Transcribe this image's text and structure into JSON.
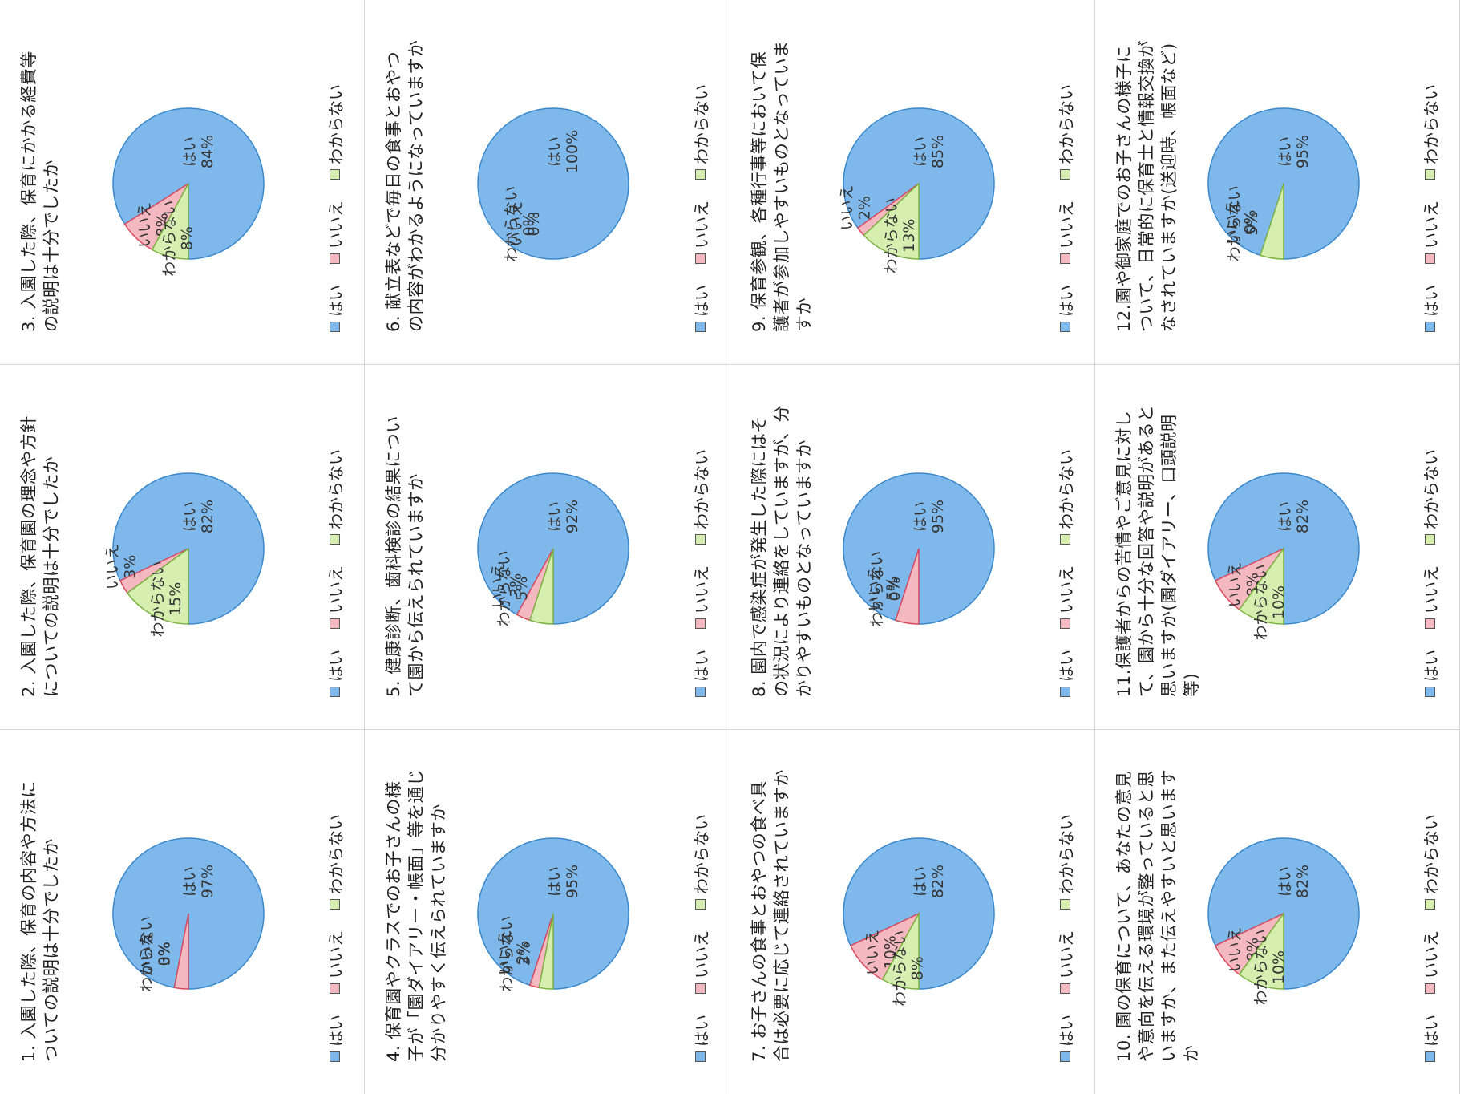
{
  "colors": {
    "yes": "#7fb8ea",
    "no": "#f4b8c0",
    "unknown": "#d6efb0",
    "yes_edge": "#3a88cc",
    "no_edge": "#d94a5e",
    "unknown_edge": "#7cb342"
  },
  "legend": {
    "yes": "はい",
    "no": "いいえ",
    "unknown": "わからない"
  },
  "chart_data": [
    {
      "type": "pie",
      "title": "1. 入園した際、保育の内容や方法についての説明は十分でしたか",
      "slices": [
        {
          "label": "はい",
          "value": 97,
          "text": "97%"
        },
        {
          "label": "いいえ",
          "value": 3,
          "text": "3%"
        },
        {
          "label": "わからない",
          "value": 0,
          "text": "0%"
        }
      ]
    },
    {
      "type": "pie",
      "title": "2. 入園した際、保育園の理念や方針についての説明は十分でしたか",
      "slices": [
        {
          "label": "はい",
          "value": 82,
          "text": "82%"
        },
        {
          "label": "いいえ",
          "value": 3,
          "text": "3%"
        },
        {
          "label": "わからない",
          "value": 15,
          "text": "15%"
        }
      ]
    },
    {
      "type": "pie",
      "title": "3. 入園した際、保育にかかる経費等の説明は十分でしたか",
      "slices": [
        {
          "label": "はい",
          "value": 84,
          "text": "84%"
        },
        {
          "label": "いいえ",
          "value": 8,
          "text": "8%"
        },
        {
          "label": "わからない",
          "value": 8,
          "text": "8%"
        }
      ]
    },
    {
      "type": "pie",
      "title": "4. 保育園やクラスでのお子さんの様子が「園ダイアリー・帳面」等を通じ分かりやすく伝えられていますか",
      "slices": [
        {
          "label": "はい",
          "value": 95,
          "text": "95%"
        },
        {
          "label": "いいえ",
          "value": 2,
          "text": "2%"
        },
        {
          "label": "わからない",
          "value": 3,
          "text": "3%"
        }
      ]
    },
    {
      "type": "pie",
      "title": "5. 健康診断、歯科検診の結果について園から伝えられていますか",
      "slices": [
        {
          "label": "はい",
          "value": 92,
          "text": "92%"
        },
        {
          "label": "いいえ",
          "value": 3,
          "text": "3%"
        },
        {
          "label": "わからない",
          "value": 5,
          "text": "5%"
        }
      ]
    },
    {
      "type": "pie",
      "title": "6. 献立表などで毎日の食事とおやつの内容がわかるようになっていますか",
      "slices": [
        {
          "label": "はい",
          "value": 100,
          "text": "100%"
        },
        {
          "label": "いいえ",
          "value": 0,
          "text": "0%"
        },
        {
          "label": "わからない",
          "value": 0,
          "text": "0%"
        }
      ]
    },
    {
      "type": "pie",
      "title": "7. お子さんの食事とおやつの食べ具合は必要に応じて連絡されていますか",
      "slices": [
        {
          "label": "はい",
          "value": 82,
          "text": "82%"
        },
        {
          "label": "いいえ",
          "value": 10,
          "text": "10%"
        },
        {
          "label": "わからない",
          "value": 8,
          "text": "8%"
        }
      ]
    },
    {
      "type": "pie",
      "title": "8. 園内で感染症が発生した際にはその状況により連絡をしていますが、分かりやすいものとなっていますか",
      "slices": [
        {
          "label": "はい",
          "value": 95,
          "text": "95%"
        },
        {
          "label": "いいえ",
          "value": 5,
          "text": "5%"
        },
        {
          "label": "わからない",
          "value": 0,
          "text": "0%"
        }
      ]
    },
    {
      "type": "pie",
      "title": "9. 保育参観、各種行事等において保護者が参加しやすいものとなっていますか",
      "slices": [
        {
          "label": "はい",
          "value": 85,
          "text": "85%"
        },
        {
          "label": "いいえ",
          "value": 2,
          "text": "2%"
        },
        {
          "label": "わからない",
          "value": 13,
          "text": "13%"
        }
      ]
    },
    {
      "type": "pie",
      "title": "10. 園の保育について、あなたの意見や意向を伝える環境が整っていると思いますか、また伝えやすいと思いますか",
      "slices": [
        {
          "label": "はい",
          "value": 82,
          "text": "82%"
        },
        {
          "label": "いいえ",
          "value": 8,
          "text": "8%"
        },
        {
          "label": "わからない",
          "value": 10,
          "text": "10%"
        }
      ]
    },
    {
      "type": "pie",
      "title": "11.保護者からの苦情やご意見に対して、園から十分な回答や説明があると思いますか(園ダイアリー、口頭説明等)",
      "slices": [
        {
          "label": "はい",
          "value": 82,
          "text": "82%"
        },
        {
          "label": "いいえ",
          "value": 8,
          "text": "8%"
        },
        {
          "label": "わからない",
          "value": 10,
          "text": "10%"
        }
      ]
    },
    {
      "type": "pie",
      "title": "12.園や御家庭でのお子さんの様子について、日常的に保育士と情報交換がなされていますか(送迎時、帳面など)",
      "slices": [
        {
          "label": "はい",
          "value": 95,
          "text": "95%"
        },
        {
          "label": "いいえ",
          "value": 0,
          "text": "0%"
        },
        {
          "label": "わからない",
          "value": 5,
          "text": "5%"
        }
      ]
    }
  ]
}
